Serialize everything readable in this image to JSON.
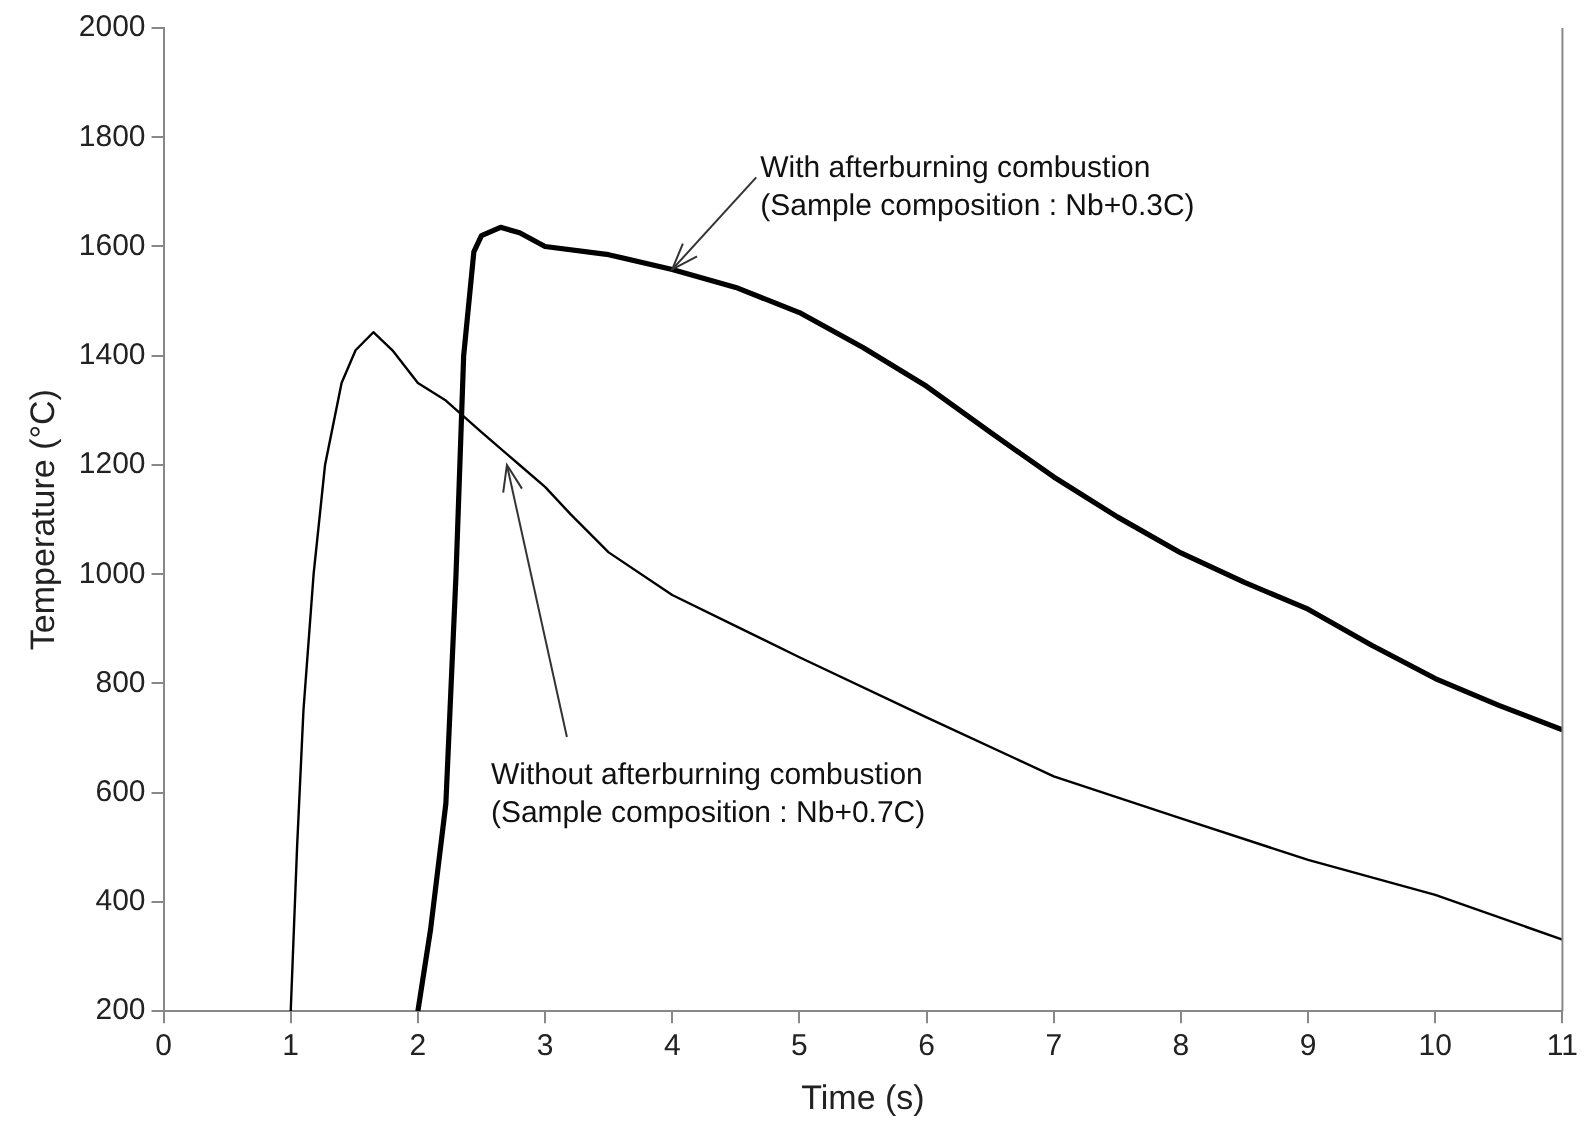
{
  "chart_data": {
    "type": "line",
    "xlabel": "Time (s)",
    "ylabel": "Temperature (°C)",
    "xlim": [
      0,
      11
    ],
    "xticks": [
      0,
      1,
      2,
      3,
      4,
      5,
      6,
      7,
      8,
      9,
      10,
      11
    ],
    "ylim": [
      200,
      2000
    ],
    "yticks": [
      200,
      400,
      600,
      800,
      1000,
      1200,
      1400,
      1600,
      1800,
      2000
    ],
    "grid": false,
    "legend": false,
    "marker": "none",
    "line_style": "solid",
    "series": [
      {
        "color": "#000000",
        "x": [
          1.0,
          1.05,
          1.1,
          1.18,
          1.27,
          1.4,
          1.51,
          1.65,
          1.8,
          2.0,
          2.22,
          2.5,
          2.8,
          3.0,
          3.2,
          3.5,
          4.0,
          4.5,
          5.0,
          6.0,
          7.0,
          8.0,
          9.0,
          10.0,
          11.0
        ],
        "values": [
          200,
          500,
          750,
          1000,
          1200,
          1350,
          1410,
          1443,
          1410,
          1350,
          1318,
          1260,
          1200,
          1160,
          1110,
          1040,
          962,
          905,
          848,
          738,
          630,
          553,
          477,
          413,
          331
        ]
      },
      {
        "color": "#000000",
        "x": [
          2.0,
          2.1,
          2.22,
          2.3,
          2.36,
          2.44,
          2.5,
          2.65,
          2.8,
          3.0,
          3.5,
          4.0,
          4.5,
          5.0,
          5.5,
          6.0,
          6.5,
          7.0,
          7.5,
          8.0,
          8.5,
          9.0,
          9.5,
          10.0,
          10.5,
          11.0
        ],
        "values": [
          200,
          350,
          580,
          1000,
          1400,
          1590,
          1620,
          1635,
          1625,
          1600,
          1585,
          1558,
          1525,
          1479,
          1415,
          1344,
          1260,
          1178,
          1105,
          1039,
          985,
          936,
          870,
          809,
          760,
          715
        ]
      }
    ],
    "annotations": [
      {
        "text": "With afterburning combustion\n(Sample composition : Nb+0.3C)",
        "x": 4.0,
        "y": 1558
      },
      {
        "text": "Without afterburning combustion\n(Sample composition : Nb+0.7C)",
        "x": 2.7,
        "y": 1200
      }
    ]
  }
}
